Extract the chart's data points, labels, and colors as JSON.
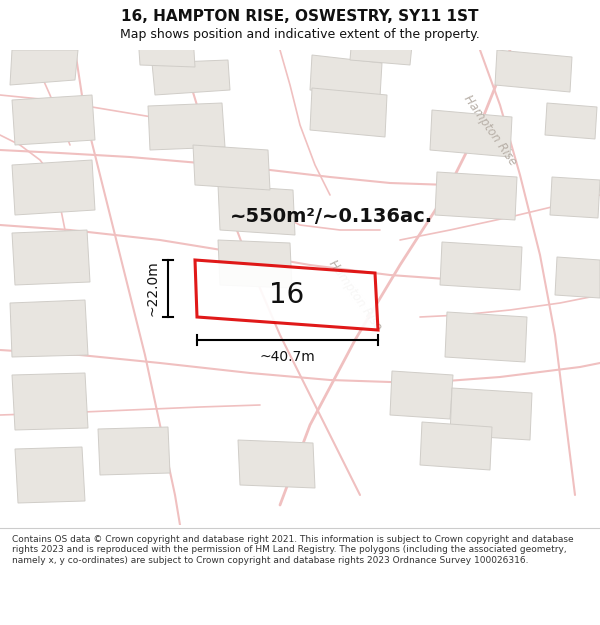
{
  "title": "16, HAMPTON RISE, OSWESTRY, SY11 1ST",
  "subtitle": "Map shows position and indicative extent of the property.",
  "area_label": "~550m²/~0.136ac.",
  "plot_number": "16",
  "width_label": "~40.7m",
  "height_label": "~22.0m",
  "footer": "Contains OS data © Crown copyright and database right 2021. This information is subject to Crown copyright and database rights 2023 and is reproduced with the permission of HM Land Registry. The polygons (including the associated geometry, namely x, y co-ordinates) are subject to Crown copyright and database rights 2023 Ordnance Survey 100026316.",
  "map_bg": "#f8f7f5",
  "road_color": "#f0c0c0",
  "building_color": "#e8e5e0",
  "building_edge": "#d0cdc8",
  "plot_edge": "#dd0000",
  "street_label_color": "#b8b0a8",
  "text_color": "#111111",
  "footer_color": "#333333",
  "title_fontsize": 11,
  "subtitle_fontsize": 9,
  "area_fontsize": 14,
  "plot_number_fontsize": 20,
  "dim_fontsize": 10,
  "street_fontsize": 8.5
}
